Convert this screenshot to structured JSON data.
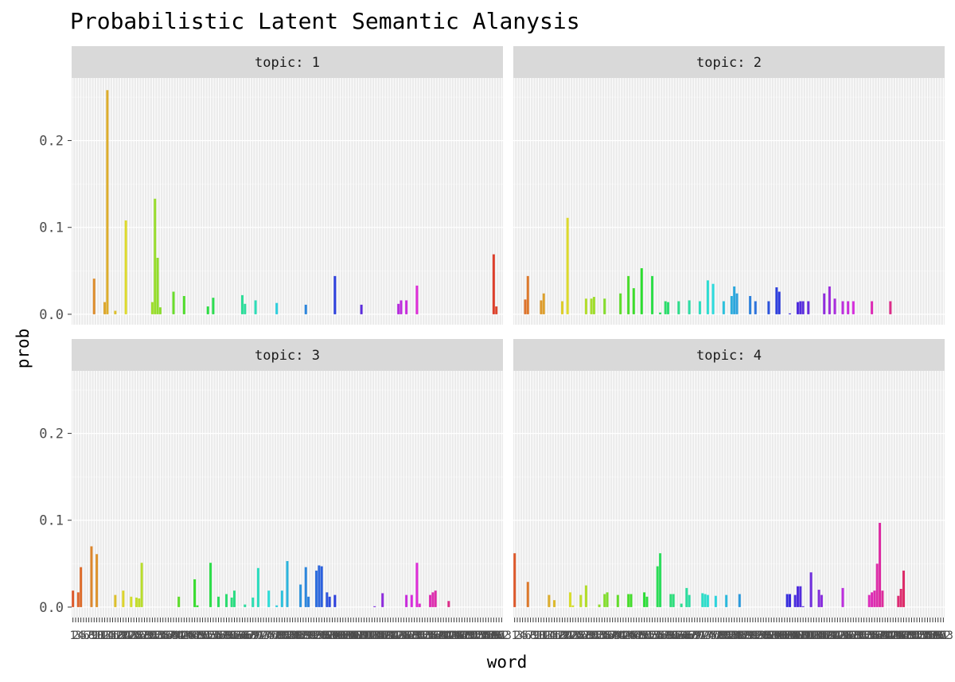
{
  "chart_data": {
    "type": "bar",
    "title": "Probabilistic Latent Semantic Alanysis",
    "xlabel": "word",
    "ylabel": "prob",
    "ylim": [
      -0.012,
      0.272
    ],
    "yticks": [
      0.0,
      0.1,
      0.2
    ],
    "ytick_labels": [
      "0.0",
      "0.1",
      "0.2"
    ],
    "n_words": 163,
    "legend": "none",
    "grid": true,
    "facet_label_prefix": "topic: ",
    "panels": [
      {
        "topic": "1",
        "bars": [
          [
            9,
            0.041
          ],
          [
            13,
            0.014
          ],
          [
            14,
            0.258
          ],
          [
            17,
            0.004
          ],
          [
            21,
            0.108
          ],
          [
            31,
            0.014
          ],
          [
            32,
            0.133
          ],
          [
            33,
            0.065
          ],
          [
            34,
            0.008
          ],
          [
            39,
            0.026
          ],
          [
            43,
            0.021
          ],
          [
            52,
            0.009
          ],
          [
            54,
            0.019
          ],
          [
            65,
            0.022
          ],
          [
            66,
            0.012
          ],
          [
            70,
            0.016
          ],
          [
            78,
            0.013
          ],
          [
            89,
            0.011
          ],
          [
            100,
            0.044
          ],
          [
            110,
            0.011
          ],
          [
            124,
            0.012
          ],
          [
            125,
            0.016
          ],
          [
            127,
            0.016
          ],
          [
            131,
            0.033
          ],
          [
            160,
            0.069
          ],
          [
            161,
            0.009
          ]
        ]
      },
      {
        "topic": "2",
        "bars": [
          [
            5,
            0.017
          ],
          [
            6,
            0.044
          ],
          [
            11,
            0.016
          ],
          [
            12,
            0.024
          ],
          [
            19,
            0.015
          ],
          [
            21,
            0.111
          ],
          [
            28,
            0.018
          ],
          [
            30,
            0.018
          ],
          [
            31,
            0.02
          ],
          [
            35,
            0.018
          ],
          [
            41,
            0.024
          ],
          [
            44,
            0.044
          ],
          [
            46,
            0.03
          ],
          [
            49,
            0.053
          ],
          [
            53,
            0.044
          ],
          [
            56,
            0.002
          ],
          [
            58,
            0.015
          ],
          [
            59,
            0.014
          ],
          [
            63,
            0.015
          ],
          [
            67,
            0.016
          ],
          [
            71,
            0.015
          ],
          [
            74,
            0.039
          ],
          [
            76,
            0.035
          ],
          [
            80,
            0.015
          ],
          [
            83,
            0.021
          ],
          [
            84,
            0.032
          ],
          [
            85,
            0.024
          ],
          [
            90,
            0.021
          ],
          [
            92,
            0.015
          ],
          [
            97,
            0.015
          ],
          [
            100,
            0.031
          ],
          [
            101,
            0.026
          ],
          [
            105,
            0.001
          ],
          [
            108,
            0.014
          ],
          [
            109,
            0.015
          ],
          [
            110,
            0.015
          ],
          [
            112,
            0.015
          ],
          [
            118,
            0.024
          ],
          [
            120,
            0.032
          ],
          [
            122,
            0.018
          ],
          [
            125,
            0.015
          ],
          [
            127,
            0.015
          ],
          [
            129,
            0.015
          ],
          [
            136,
            0.015
          ],
          [
            143,
            0.015
          ]
        ]
      },
      {
        "topic": "3",
        "bars": [
          [
            1,
            0.019
          ],
          [
            3,
            0.017
          ],
          [
            4,
            0.046
          ],
          [
            8,
            0.07
          ],
          [
            10,
            0.061
          ],
          [
            17,
            0.014
          ],
          [
            20,
            0.019
          ],
          [
            23,
            0.012
          ],
          [
            25,
            0.011
          ],
          [
            26,
            0.01
          ],
          [
            27,
            0.051
          ],
          [
            41,
            0.012
          ],
          [
            47,
            0.032
          ],
          [
            48,
            0.002
          ],
          [
            53,
            0.051
          ],
          [
            56,
            0.012
          ],
          [
            59,
            0.015
          ],
          [
            61,
            0.011
          ],
          [
            62,
            0.019
          ],
          [
            66,
            0.003
          ],
          [
            69,
            0.011
          ],
          [
            71,
            0.045
          ],
          [
            75,
            0.019
          ],
          [
            78,
            0.002
          ],
          [
            80,
            0.019
          ],
          [
            82,
            0.053
          ],
          [
            87,
            0.026
          ],
          [
            89,
            0.046
          ],
          [
            90,
            0.012
          ],
          [
            93,
            0.042
          ],
          [
            94,
            0.048
          ],
          [
            95,
            0.047
          ],
          [
            97,
            0.017
          ],
          [
            98,
            0.012
          ],
          [
            100,
            0.014
          ],
          [
            115,
            0.001
          ],
          [
            118,
            0.016
          ],
          [
            127,
            0.014
          ],
          [
            129,
            0.014
          ],
          [
            131,
            0.051
          ],
          [
            132,
            0.004
          ],
          [
            136,
            0.014
          ],
          [
            137,
            0.017
          ],
          [
            138,
            0.019
          ],
          [
            143,
            0.007
          ]
        ]
      },
      {
        "topic": "4",
        "bars": [
          [
            1,
            0.062
          ],
          [
            6,
            0.029
          ],
          [
            14,
            0.014
          ],
          [
            16,
            0.008
          ],
          [
            22,
            0.017
          ],
          [
            23,
            0.002
          ],
          [
            26,
            0.014
          ],
          [
            28,
            0.025
          ],
          [
            33,
            0.003
          ],
          [
            35,
            0.015
          ],
          [
            36,
            0.017
          ],
          [
            40,
            0.014
          ],
          [
            44,
            0.015
          ],
          [
            45,
            0.015
          ],
          [
            50,
            0.017
          ],
          [
            51,
            0.012
          ],
          [
            55,
            0.047
          ],
          [
            56,
            0.062
          ],
          [
            60,
            0.015
          ],
          [
            61,
            0.015
          ],
          [
            64,
            0.004
          ],
          [
            66,
            0.022
          ],
          [
            67,
            0.014
          ],
          [
            72,
            0.016
          ],
          [
            73,
            0.015
          ],
          [
            74,
            0.014
          ],
          [
            77,
            0.013
          ],
          [
            81,
            0.014
          ],
          [
            86,
            0.015
          ],
          [
            104,
            0.015
          ],
          [
            105,
            0.015
          ],
          [
            107,
            0.014
          ],
          [
            108,
            0.024
          ],
          [
            109,
            0.024
          ],
          [
            110,
            0.001
          ],
          [
            113,
            0.04
          ],
          [
            116,
            0.02
          ],
          [
            117,
            0.014
          ],
          [
            125,
            0.022
          ],
          [
            135,
            0.014
          ],
          [
            136,
            0.017
          ],
          [
            137,
            0.019
          ],
          [
            138,
            0.05
          ],
          [
            139,
            0.097
          ],
          [
            140,
            0.019
          ],
          [
            146,
            0.013
          ],
          [
            147,
            0.021
          ],
          [
            148,
            0.042
          ]
        ]
      }
    ]
  }
}
